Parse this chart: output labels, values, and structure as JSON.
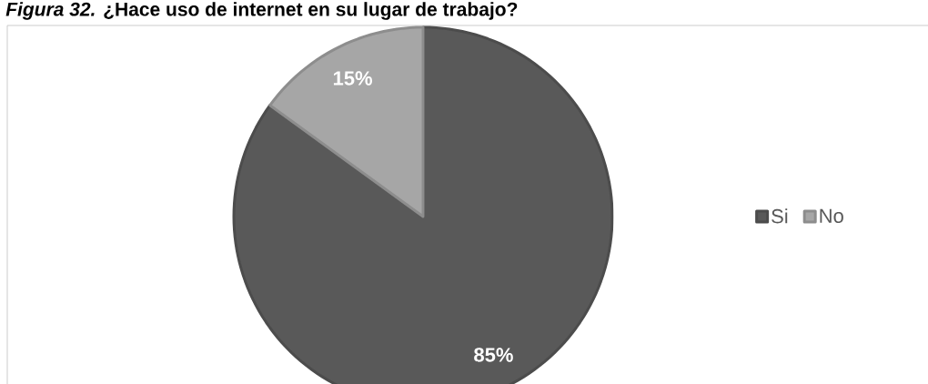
{
  "chart_data": {
    "type": "pie",
    "title": "*Figura 32.* ¿Hace uso de internet en su lugar de trabajo?",
    "categories": [
      "Si",
      "No"
    ],
    "values": [
      85,
      15
    ],
    "colors": [
      "#595959",
      "#a6a6a6"
    ],
    "value_labels": [
      "85%",
      "15%"
    ],
    "legend": "right"
  }
}
